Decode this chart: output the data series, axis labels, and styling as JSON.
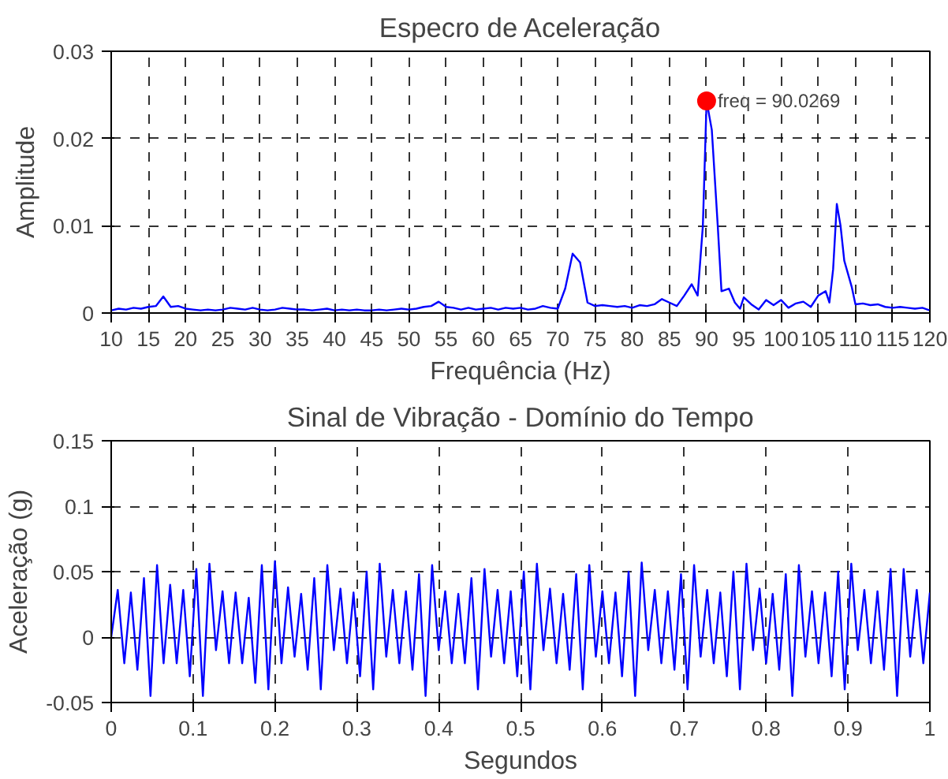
{
  "chart_data": [
    {
      "type": "line",
      "title": "Especro de Aceleração",
      "xlabel": "Frequência (Hz)",
      "ylabel": "Amplitude",
      "xlim": [
        10,
        120
      ],
      "xticks": [
        10,
        15,
        20,
        25,
        30,
        35,
        40,
        45,
        50,
        55,
        60,
        65,
        70,
        75,
        80,
        85,
        90,
        95,
        100,
        105,
        110,
        115,
        120
      ],
      "ylim": [
        0,
        0.03
      ],
      "yticks": [
        0,
        0.01,
        0.02,
        0.03
      ],
      "grid": true,
      "series": [
        {
          "color": "#0000ff",
          "x": [
            10,
            11,
            12,
            13,
            14,
            15,
            16,
            17,
            18,
            19,
            20,
            21,
            22,
            23,
            24,
            25,
            26,
            27,
            28,
            29,
            30,
            31,
            32,
            33,
            34,
            35,
            36,
            37,
            38,
            39,
            40,
            41,
            42,
            43,
            44,
            45,
            46,
            47,
            48,
            49,
            50,
            51,
            52,
            53,
            54,
            55,
            56,
            57,
            58,
            59,
            60,
            61,
            62,
            63,
            64,
            65,
            66,
            67,
            68,
            69,
            70,
            71,
            72,
            73,
            74,
            75,
            76,
            77,
            78,
            79,
            80,
            81,
            82,
            83,
            84,
            85,
            86,
            87,
            88,
            88.8,
            89.5,
            90,
            90.7,
            91.5,
            92,
            93,
            93.8,
            94.5,
            95,
            96,
            97,
            98,
            99,
            100,
            101,
            102,
            103,
            104,
            105,
            106,
            106.5,
            107,
            107.5,
            108,
            108.5,
            109.5,
            110,
            111,
            112,
            113,
            114,
            115,
            116,
            117,
            118,
            119,
            120
          ],
          "values": [
            0.0003,
            0.0005,
            0.0004,
            0.0006,
            0.0005,
            0.0007,
            0.0008,
            0.0019,
            0.0007,
            0.0008,
            0.0005,
            0.0004,
            0.0003,
            0.0004,
            0.0003,
            0.0004,
            0.0006,
            0.0005,
            0.0004,
            0.0006,
            0.0004,
            0.0003,
            0.0004,
            0.0006,
            0.0005,
            0.0004,
            0.0004,
            0.0003,
            0.0004,
            0.0005,
            0.0003,
            0.0004,
            0.0003,
            0.0004,
            0.0003,
            0.0003,
            0.0004,
            0.0003,
            0.0004,
            0.0005,
            0.0004,
            0.0005,
            0.0007,
            0.0008,
            0.0013,
            0.0007,
            0.0006,
            0.0004,
            0.0006,
            0.0004,
            0.0005,
            0.0006,
            0.0004,
            0.0006,
            0.0005,
            0.0006,
            0.0004,
            0.0005,
            0.0008,
            0.0006,
            0.0005,
            0.0028,
            0.0068,
            0.0058,
            0.0012,
            0.0008,
            0.0009,
            0.0008,
            0.0007,
            0.0008,
            0.0006,
            0.0009,
            0.0008,
            0.001,
            0.0016,
            0.0012,
            0.0008,
            0.002,
            0.0033,
            0.002,
            0.01,
            0.0243,
            0.021,
            0.01,
            0.0025,
            0.0028,
            0.0012,
            0.0005,
            0.0018,
            0.001,
            0.0004,
            0.0015,
            0.0009,
            0.0015,
            0.0006,
            0.0011,
            0.0013,
            0.0007,
            0.002,
            0.0025,
            0.0012,
            0.005,
            0.0125,
            0.01,
            0.006,
            0.003,
            0.001,
            0.0011,
            0.0009,
            0.001,
            0.0007,
            0.0006,
            0.0007,
            0.0006,
            0.0005,
            0.0006,
            0.0003
          ]
        },
        {
          "type": "scatter",
          "color": "#ff0000",
          "marker": "circle",
          "x": [
            90
          ],
          "values": [
            0.0243
          ]
        }
      ],
      "annotations": [
        {
          "text": "freq = 90.0269",
          "x": 90,
          "y": 0.0243
        }
      ]
    },
    {
      "type": "line",
      "title": "Sinal de Vibração - Domínio do Tempo",
      "xlabel": "Segundos",
      "ylabel": "Aceleração (g)",
      "xlim": [
        0,
        1
      ],
      "xticks": [
        0,
        0.1,
        0.2,
        0.3,
        0.4,
        0.5,
        0.6,
        0.7,
        0.8,
        0.9,
        1
      ],
      "ylim": [
        -0.05,
        0.15
      ],
      "yticks": [
        -0.05,
        0,
        0.05,
        0.1,
        0.15
      ],
      "grid": true,
      "series": [
        {
          "color": "#0000ff",
          "x": [
            0,
            0.008,
            0.016,
            0.024,
            0.032,
            0.04,
            0.048,
            0.056,
            0.064,
            0.072,
            0.08,
            0.088,
            0.096,
            0.104,
            0.112,
            0.12,
            0.128,
            0.136,
            0.144,
            0.152,
            0.16,
            0.168,
            0.176,
            0.184,
            0.192,
            0.2,
            0.208,
            0.216,
            0.224,
            0.232,
            0.24,
            0.248,
            0.256,
            0.264,
            0.272,
            0.28,
            0.288,
            0.296,
            0.304,
            0.312,
            0.32,
            0.328,
            0.336,
            0.344,
            0.352,
            0.36,
            0.368,
            0.376,
            0.384,
            0.392,
            0.4,
            0.408,
            0.416,
            0.424,
            0.432,
            0.44,
            0.448,
            0.456,
            0.464,
            0.472,
            0.48,
            0.488,
            0.496,
            0.504,
            0.512,
            0.52,
            0.528,
            0.536,
            0.544,
            0.552,
            0.56,
            0.568,
            0.576,
            0.584,
            0.592,
            0.6,
            0.608,
            0.616,
            0.624,
            0.632,
            0.64,
            0.648,
            0.656,
            0.664,
            0.672,
            0.68,
            0.688,
            0.696,
            0.704,
            0.712,
            0.72,
            0.728,
            0.736,
            0.744,
            0.752,
            0.76,
            0.768,
            0.776,
            0.784,
            0.792,
            0.8,
            0.808,
            0.816,
            0.824,
            0.832,
            0.84,
            0.848,
            0.856,
            0.864,
            0.872,
            0.88,
            0.888,
            0.896,
            0.904,
            0.912,
            0.92,
            0.928,
            0.936,
            0.944,
            0.952,
            0.96,
            0.968,
            0.976,
            0.984,
            0.992,
            1
          ],
          "values": [
            0,
            0.036,
            -0.02,
            0.034,
            -0.025,
            0.045,
            -0.045,
            0.055,
            -0.02,
            0.04,
            -0.02,
            0.036,
            -0.03,
            0.052,
            -0.045,
            0.056,
            -0.01,
            0.035,
            -0.02,
            0.034,
            -0.02,
            0.03,
            -0.035,
            0.055,
            -0.04,
            0.058,
            -0.02,
            0.038,
            -0.015,
            0.033,
            -0.025,
            0.045,
            -0.04,
            0.055,
            -0.01,
            0.037,
            -0.02,
            0.034,
            -0.03,
            0.05,
            -0.04,
            0.056,
            -0.015,
            0.036,
            -0.02,
            0.035,
            -0.025,
            0.048,
            -0.045,
            0.055,
            -0.01,
            0.035,
            -0.02,
            0.033,
            -0.02,
            0.045,
            -0.04,
            0.052,
            -0.015,
            0.036,
            -0.02,
            0.035,
            -0.03,
            0.05,
            -0.04,
            0.056,
            -0.01,
            0.037,
            -0.02,
            0.033,
            -0.025,
            0.048,
            -0.04,
            0.055,
            -0.015,
            0.035,
            -0.02,
            0.034,
            -0.03,
            0.05,
            -0.045,
            0.057,
            -0.01,
            0.036,
            -0.02,
            0.035,
            -0.025,
            0.048,
            -0.04,
            0.055,
            -0.015,
            0.036,
            -0.02,
            0.034,
            -0.03,
            0.05,
            -0.04,
            0.056,
            -0.01,
            0.037,
            -0.02,
            0.033,
            -0.025,
            0.048,
            -0.045,
            0.055,
            -0.015,
            0.035,
            -0.02,
            0.034,
            -0.03,
            0.05,
            -0.04,
            0.056,
            -0.01,
            0.036,
            -0.02,
            0.035,
            -0.025,
            0.052,
            -0.045,
            0.052,
            -0.015,
            0.036,
            -0.02,
            0.034
          ]
        }
      ]
    }
  ]
}
